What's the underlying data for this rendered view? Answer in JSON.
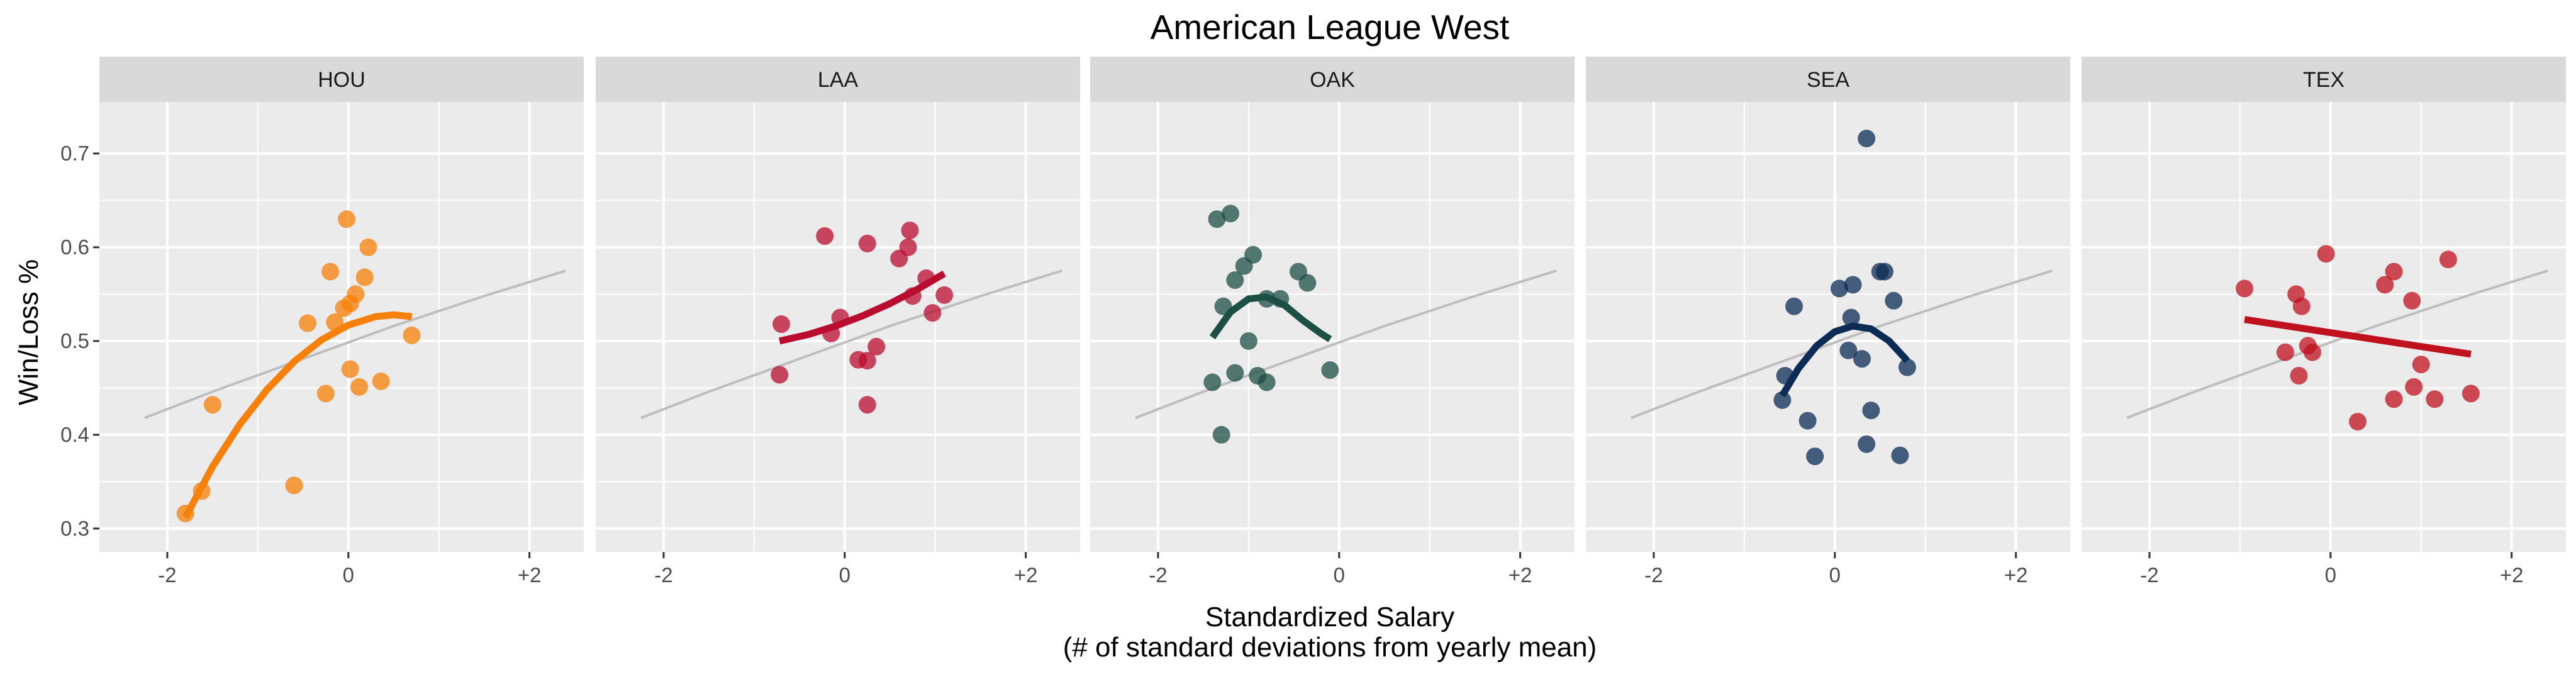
{
  "chart_data": {
    "type": "scatter",
    "title": "American League West",
    "xlabel": [
      "Standardized Salary",
      "(# of standard deviations from yearly mean)"
    ],
    "ylabel": "Win/Loss %",
    "xlim": [
      -2.75,
      2.6
    ],
    "ylim": [
      0.275,
      0.755
    ],
    "x_ticks": [
      {
        "value": -2,
        "label": "-2"
      },
      {
        "value": 0,
        "label": "0"
      },
      {
        "value": 2,
        "label": "+2"
      }
    ],
    "y_ticks": [
      {
        "value": 0.3,
        "label": "0.3"
      },
      {
        "value": 0.4,
        "label": "0.4"
      },
      {
        "value": 0.5,
        "label": "0.5"
      },
      {
        "value": 0.6,
        "label": "0.6"
      },
      {
        "value": 0.7,
        "label": "0.7"
      }
    ],
    "grid": true,
    "reference_line": {
      "x": [
        -2.25,
        -1.5,
        -0.5,
        0.5,
        1.5,
        2.4
      ],
      "y": [
        0.418,
        0.446,
        0.481,
        0.516,
        0.548,
        0.575
      ]
    },
    "panels": [
      {
        "name": "HOU",
        "color": "#f7800a",
        "points": [
          {
            "x": -1.8,
            "y": 0.316
          },
          {
            "x": -1.62,
            "y": 0.34
          },
          {
            "x": -1.5,
            "y": 0.432
          },
          {
            "x": -0.6,
            "y": 0.346
          },
          {
            "x": -0.45,
            "y": 0.519
          },
          {
            "x": -0.25,
            "y": 0.444
          },
          {
            "x": -0.2,
            "y": 0.574
          },
          {
            "x": -0.15,
            "y": 0.52
          },
          {
            "x": -0.05,
            "y": 0.535
          },
          {
            "x": -0.02,
            "y": 0.63
          },
          {
            "x": 0.02,
            "y": 0.54
          },
          {
            "x": 0.02,
            "y": 0.47
          },
          {
            "x": 0.08,
            "y": 0.55
          },
          {
            "x": 0.12,
            "y": 0.451
          },
          {
            "x": 0.18,
            "y": 0.568
          },
          {
            "x": 0.22,
            "y": 0.6
          },
          {
            "x": 0.36,
            "y": 0.457
          },
          {
            "x": 0.7,
            "y": 0.506
          }
        ],
        "trend": {
          "x": [
            -1.8,
            -1.5,
            -1.2,
            -0.9,
            -0.6,
            -0.3,
            0.0,
            0.3,
            0.5,
            0.7
          ],
          "y": [
            0.312,
            0.366,
            0.411,
            0.448,
            0.478,
            0.501,
            0.517,
            0.526,
            0.528,
            0.526
          ]
        }
      },
      {
        "name": "LAA",
        "color": "#ba0c2f",
        "points": [
          {
            "x": -0.72,
            "y": 0.464
          },
          {
            "x": -0.7,
            "y": 0.518
          },
          {
            "x": -0.22,
            "y": 0.612
          },
          {
            "x": -0.15,
            "y": 0.508
          },
          {
            "x": -0.05,
            "y": 0.525
          },
          {
            "x": 0.15,
            "y": 0.48
          },
          {
            "x": 0.25,
            "y": 0.604
          },
          {
            "x": 0.25,
            "y": 0.479
          },
          {
            "x": 0.25,
            "y": 0.432
          },
          {
            "x": 0.35,
            "y": 0.494
          },
          {
            "x": 0.6,
            "y": 0.588
          },
          {
            "x": 0.7,
            "y": 0.6
          },
          {
            "x": 0.72,
            "y": 0.618
          },
          {
            "x": 0.75,
            "y": 0.548
          },
          {
            "x": 0.9,
            "y": 0.567
          },
          {
            "x": 0.97,
            "y": 0.53
          },
          {
            "x": 1.1,
            "y": 0.549
          }
        ],
        "trend": {
          "x": [
            -0.72,
            -0.4,
            -0.1,
            0.2,
            0.5,
            0.8,
            1.1
          ],
          "y": [
            0.5,
            0.507,
            0.516,
            0.527,
            0.54,
            0.555,
            0.572
          ]
        }
      },
      {
        "name": "OAK",
        "color": "#1d4f45",
        "points": [
          {
            "x": -1.4,
            "y": 0.456
          },
          {
            "x": -1.35,
            "y": 0.63
          },
          {
            "x": -1.3,
            "y": 0.4
          },
          {
            "x": -1.28,
            "y": 0.537
          },
          {
            "x": -1.2,
            "y": 0.636
          },
          {
            "x": -1.15,
            "y": 0.466
          },
          {
            "x": -1.15,
            "y": 0.565
          },
          {
            "x": -1.05,
            "y": 0.58
          },
          {
            "x": -1.0,
            "y": 0.5
          },
          {
            "x": -0.95,
            "y": 0.592
          },
          {
            "x": -0.9,
            "y": 0.463
          },
          {
            "x": -0.8,
            "y": 0.456
          },
          {
            "x": -0.8,
            "y": 0.545
          },
          {
            "x": -0.65,
            "y": 0.545
          },
          {
            "x": -0.45,
            "y": 0.574
          },
          {
            "x": -0.35,
            "y": 0.562
          },
          {
            "x": -0.1,
            "y": 0.469
          }
        ],
        "trend": {
          "x": [
            -1.4,
            -1.2,
            -1.0,
            -0.8,
            -0.6,
            -0.4,
            -0.2,
            -0.1
          ],
          "y": [
            0.504,
            0.531,
            0.545,
            0.547,
            0.538,
            0.522,
            0.508,
            0.502
          ]
        }
      },
      {
        "name": "SEA",
        "color": "#0c2c56",
        "points": [
          {
            "x": -0.58,
            "y": 0.437
          },
          {
            "x": -0.55,
            "y": 0.463
          },
          {
            "x": -0.45,
            "y": 0.537
          },
          {
            "x": -0.3,
            "y": 0.415
          },
          {
            "x": -0.22,
            "y": 0.377
          },
          {
            "x": 0.05,
            "y": 0.556
          },
          {
            "x": 0.15,
            "y": 0.49
          },
          {
            "x": 0.18,
            "y": 0.525
          },
          {
            "x": 0.2,
            "y": 0.56
          },
          {
            "x": 0.3,
            "y": 0.481
          },
          {
            "x": 0.35,
            "y": 0.716
          },
          {
            "x": 0.35,
            "y": 0.39
          },
          {
            "x": 0.4,
            "y": 0.426
          },
          {
            "x": 0.5,
            "y": 0.574
          },
          {
            "x": 0.55,
            "y": 0.574
          },
          {
            "x": 0.65,
            "y": 0.543
          },
          {
            "x": 0.72,
            "y": 0.378
          },
          {
            "x": 0.8,
            "y": 0.472
          }
        ],
        "trend": {
          "x": [
            -0.58,
            -0.4,
            -0.2,
            0.0,
            0.2,
            0.4,
            0.6,
            0.8
          ],
          "y": [
            0.442,
            0.471,
            0.495,
            0.51,
            0.516,
            0.513,
            0.5,
            0.479
          ]
        }
      },
      {
        "name": "TEX",
        "color": "#c0111f",
        "points": [
          {
            "x": -0.95,
            "y": 0.556
          },
          {
            "x": -0.5,
            "y": 0.488
          },
          {
            "x": -0.38,
            "y": 0.55
          },
          {
            "x": -0.35,
            "y": 0.463
          },
          {
            "x": -0.32,
            "y": 0.537
          },
          {
            "x": -0.25,
            "y": 0.495
          },
          {
            "x": -0.2,
            "y": 0.488
          },
          {
            "x": -0.05,
            "y": 0.593
          },
          {
            "x": 0.3,
            "y": 0.414
          },
          {
            "x": 0.6,
            "y": 0.56
          },
          {
            "x": 0.7,
            "y": 0.574
          },
          {
            "x": 0.7,
            "y": 0.438
          },
          {
            "x": 0.9,
            "y": 0.543
          },
          {
            "x": 0.92,
            "y": 0.451
          },
          {
            "x": 1.0,
            "y": 0.475
          },
          {
            "x": 1.15,
            "y": 0.438
          },
          {
            "x": 1.3,
            "y": 0.587
          },
          {
            "x": 1.55,
            "y": 0.444
          }
        ],
        "trend": {
          "x": [
            -0.95,
            1.55
          ],
          "y": [
            0.523,
            0.486
          ]
        }
      }
    ]
  }
}
